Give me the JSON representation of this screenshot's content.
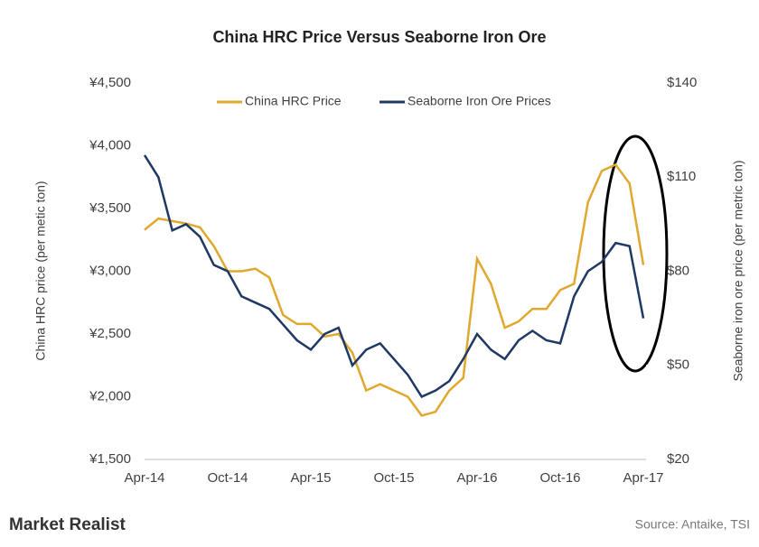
{
  "chart_data": {
    "type": "line",
    "title": "China HRC Price Versus Seaborne Iron Ore",
    "categories": [
      "Apr-14",
      null,
      null,
      null,
      null,
      null,
      "Oct-14",
      null,
      null,
      null,
      null,
      null,
      "Apr-15",
      null,
      null,
      null,
      null,
      null,
      "Oct-15",
      null,
      null,
      null,
      null,
      null,
      "Apr-16",
      null,
      null,
      null,
      null,
      null,
      "Oct-16",
      null,
      null,
      null,
      null,
      null,
      "Apr-17"
    ],
    "series": [
      {
        "name": "China HRC Price",
        "color": "#e0a82e",
        "values": [
          3330,
          3420,
          3400,
          3380,
          3350,
          3200,
          3000,
          3000,
          3020,
          2950,
          2650,
          2580,
          2580,
          2480,
          2500,
          2350,
          2050,
          2100,
          2050,
          2000,
          1850,
          1880,
          2050,
          2150,
          3100,
          2900,
          2550,
          2600,
          2700,
          2700,
          2850,
          2900,
          3550,
          3800,
          3850,
          3700,
          3050
        ]
      },
      {
        "name": "Seaborne Iron Ore Prices",
        "color": "#1f3864",
        "axis": "y2",
        "values": [
          117,
          110,
          93,
          95,
          91,
          82,
          80,
          72,
          70,
          68,
          63,
          58,
          55,
          60,
          62,
          50,
          55,
          57,
          52,
          47,
          40,
          42,
          45,
          52,
          60,
          55,
          52,
          58,
          61,
          58,
          57,
          72,
          80,
          83,
          89,
          88,
          65
        ]
      }
    ],
    "ylabel": "China HRC price (per metic ton)",
    "y2label": "Seaborne iron ore price (per metric ton)",
    "ylim": [
      1500,
      4500
    ],
    "yticks": [
      {
        "value": 1500,
        "label": "¥1,500"
      },
      {
        "value": 2000,
        "label": "¥2,000"
      },
      {
        "value": 2500,
        "label": "¥2,500"
      },
      {
        "value": 3000,
        "label": "¥3,000"
      },
      {
        "value": 3500,
        "label": "¥3,500"
      },
      {
        "value": 4000,
        "label": "¥4,000"
      },
      {
        "value": 4500,
        "label": "¥4,500"
      }
    ],
    "y2lim": [
      20,
      140
    ],
    "y2ticks": [
      {
        "value": 20,
        "label": "$20"
      },
      {
        "value": 50,
        "label": "$50"
      },
      {
        "value": 80,
        "label": "$80"
      },
      {
        "value": 110,
        "label": "$110"
      },
      {
        "value": 140,
        "label": "$140"
      }
    ],
    "brand": "Market Realist",
    "source": "Source: Antaike, TSI"
  }
}
